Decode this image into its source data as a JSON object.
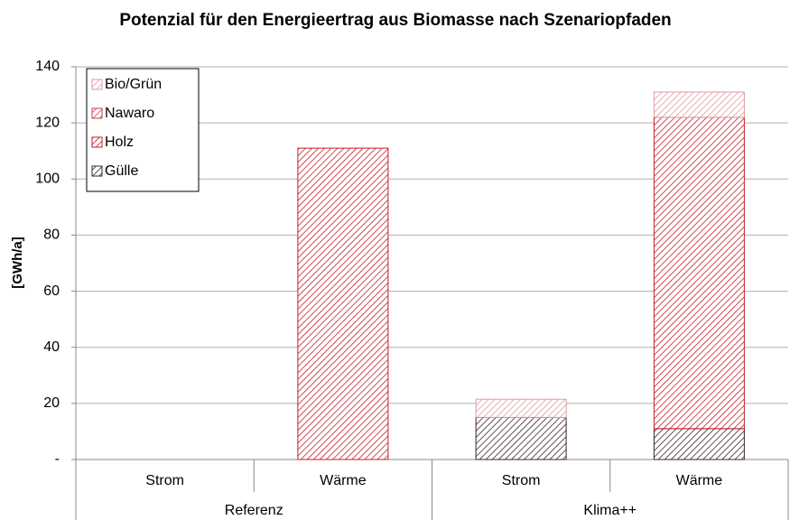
{
  "chart_data": {
    "type": "stacked-bar",
    "title": "Potenzial für den Energieertrag aus Biomasse nach Szenariopfaden",
    "y_label": "[GWh/a]",
    "categories": [
      "Strom",
      "Wärme",
      "Strom",
      "Wärme"
    ],
    "groups": [
      "Referenz",
      "Klima++"
    ],
    "series": [
      {
        "name": "Gülle",
        "color": "#3a2626",
        "values": [
          0,
          0,
          15,
          11
        ]
      },
      {
        "name": "Holz",
        "color": "#c41e2a",
        "values": [
          0,
          111,
          0,
          111
        ]
      },
      {
        "name": "Nawaro",
        "color": "#c83c46",
        "values": [
          0,
          0,
          0,
          0
        ]
      },
      {
        "name": "Bio/Grün",
        "color": "#e29a9e",
        "values": [
          0,
          0,
          6.5,
          9
        ]
      }
    ],
    "ylim": [
      0,
      140
    ],
    "yticks": [
      {
        "value": 0,
        "label": "-"
      },
      20,
      40,
      60,
      80,
      100,
      120,
      140
    ],
    "grid": true,
    "legend": "top-left"
  }
}
